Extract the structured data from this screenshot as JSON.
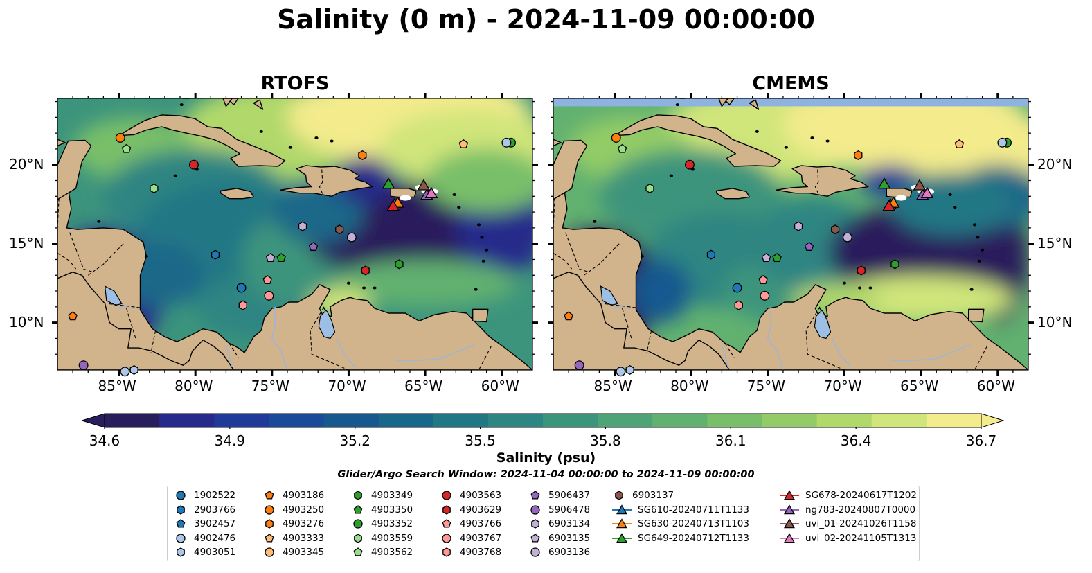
{
  "title": "Salinity (0 m) - 2024-11-09 00:00:00",
  "panels": [
    {
      "title": "RTOFS"
    },
    {
      "title": "CMEMS"
    }
  ],
  "axes": {
    "lon_ticks": [
      "85°W",
      "80°W",
      "75°W",
      "70°W",
      "65°W",
      "60°W"
    ],
    "lat_ticks": [
      "20°N",
      "15°N",
      "10°N"
    ]
  },
  "colorbar": {
    "label": "Salinity (psu)",
    "tick_labels": [
      "34.6",
      "34.9",
      "35.2",
      "35.5",
      "35.8",
      "36.1",
      "36.4",
      "36.7"
    ],
    "range": [
      34.6,
      36.7
    ],
    "colormap": [
      "#2a1d5c",
      "#262a8a",
      "#1f3a98",
      "#1b4a98",
      "#17598f",
      "#1a6889",
      "#237785",
      "#2f8582",
      "#3c947c",
      "#4ea377",
      "#62b170",
      "#79bf69",
      "#93cc66",
      "#b1d86a",
      "#d0e57a",
      "#f3eb8c"
    ]
  },
  "search_window": "Glider/Argo Search Window: 2024-11-04 00:00:00 to 2024-11-09 00:00:00",
  "legend": {
    "columns": [
      [
        {
          "label": "1902522",
          "marker": "circle",
          "color": "#1f77b4"
        },
        {
          "label": "2903766",
          "marker": "hexagon",
          "color": "#1f77b4"
        },
        {
          "label": "3902457",
          "marker": "pentagon",
          "color": "#1f77b4"
        },
        {
          "label": "4902476",
          "marker": "circle",
          "color": "#aec7e8"
        },
        {
          "label": "4903051",
          "marker": "hexagon",
          "color": "#aec7e8"
        }
      ],
      [
        {
          "label": "4903186",
          "marker": "pentagon",
          "color": "#ff7f0e"
        },
        {
          "label": "4903250",
          "marker": "circle",
          "color": "#ff7f0e"
        },
        {
          "label": "4903276",
          "marker": "hexagon",
          "color": "#ff7f0e"
        },
        {
          "label": "4903333",
          "marker": "pentagon",
          "color": "#ffbb78"
        },
        {
          "label": "4903345",
          "marker": "circle",
          "color": "#ffbb78"
        }
      ],
      [
        {
          "label": "4903349",
          "marker": "hexagon",
          "color": "#2ca02c"
        },
        {
          "label": "4903350",
          "marker": "pentagon",
          "color": "#2ca02c"
        },
        {
          "label": "4903352",
          "marker": "circle",
          "color": "#2ca02c"
        },
        {
          "label": "4903559",
          "marker": "hexagon",
          "color": "#98df8a"
        },
        {
          "label": "4903562",
          "marker": "pentagon",
          "color": "#98df8a"
        }
      ],
      [
        {
          "label": "4903563",
          "marker": "circle",
          "color": "#d62728"
        },
        {
          "label": "4903629",
          "marker": "hexagon",
          "color": "#d62728"
        },
        {
          "label": "4903766",
          "marker": "pentagon",
          "color": "#ff9896"
        },
        {
          "label": "4903767",
          "marker": "circle",
          "color": "#ff9896"
        },
        {
          "label": "4903768",
          "marker": "hexagon",
          "color": "#ff9896"
        }
      ],
      [
        {
          "label": "5906437",
          "marker": "pentagon",
          "color": "#9467bd"
        },
        {
          "label": "5906478",
          "marker": "circle",
          "color": "#9467bd"
        },
        {
          "label": "6903134",
          "marker": "hexagon",
          "color": "#c5b0d5"
        },
        {
          "label": "6903135",
          "marker": "pentagon",
          "color": "#c5b0d5"
        },
        {
          "label": "6903136",
          "marker": "circle",
          "color": "#c5b0d5"
        }
      ],
      [
        {
          "label": "6903137",
          "marker": "hexagon",
          "color": "#8c564b"
        },
        {
          "label": "SG610-20240711T1133",
          "marker": "triangle",
          "color": "#1f77b4"
        },
        {
          "label": "SG630-20240713T1103",
          "marker": "triangle",
          "color": "#ff7f0e"
        },
        {
          "label": "SG649-20240712T1133",
          "marker": "triangle",
          "color": "#2ca02c"
        }
      ],
      [
        {
          "label": "SG678-20240617T1202",
          "marker": "triangle",
          "color": "#d62728"
        },
        {
          "label": "ng783-20240807T0000",
          "marker": "triangle",
          "color": "#9467bd"
        },
        {
          "label": "uvi_01-20241026T1158",
          "marker": "triangle",
          "color": "#8c564b"
        },
        {
          "label": "uvi_02-20241105T1313",
          "marker": "triangle",
          "color": "#e377c2"
        }
      ]
    ]
  },
  "map_data": {
    "extent": {
      "lon": [
        -89,
        -58
      ],
      "lat": [
        7,
        24.2
      ]
    },
    "colors": {
      "land": "#d2b48c",
      "lake": "#9dbfe6",
      "river": "#9cb6d6",
      "nodata": "#8fb3e0"
    },
    "observations": [
      {
        "id": "1902522",
        "lon": -77.0,
        "lat": 12.2
      },
      {
        "id": "2903766",
        "lon": -78.7,
        "lat": 14.3
      },
      {
        "id": "4902476",
        "lon": -84.6,
        "lat": 6.9
      },
      {
        "id": "4903051",
        "lon": -84.0,
        "lat": 7.0
      },
      {
        "id": "4903186",
        "lon": -88.0,
        "lat": 10.4
      },
      {
        "id": "4903250",
        "lon": -84.9,
        "lat": 21.7
      },
      {
        "id": "4903276",
        "lon": -69.1,
        "lat": 20.6
      },
      {
        "id": "4903333",
        "lon": -62.5,
        "lat": 21.3
      },
      {
        "id": "4903349",
        "lon": -66.7,
        "lat": 13.7
      },
      {
        "id": "4903350",
        "lon": -74.4,
        "lat": 14.1
      },
      {
        "id": "4903352",
        "lon": -59.4,
        "lat": 21.4
      },
      {
        "id": "4903559",
        "lon": -82.7,
        "lat": 18.5
      },
      {
        "id": "4903562",
        "lon": -84.5,
        "lat": 21.0
      },
      {
        "id": "4903563",
        "lon": -80.1,
        "lat": 20.0
      },
      {
        "id": "4903629",
        "lon": -68.9,
        "lat": 13.3
      },
      {
        "id": "4903766",
        "lon": -75.3,
        "lat": 12.7
      },
      {
        "id": "4903767",
        "lon": -75.2,
        "lat": 11.7
      },
      {
        "id": "4903768",
        "lon": -76.9,
        "lat": 11.1
      },
      {
        "id": "5906437",
        "lon": -72.3,
        "lat": 14.8
      },
      {
        "id": "5906478",
        "lon": -87.3,
        "lat": 7.3
      },
      {
        "id": "6903134",
        "lon": -73.0,
        "lat": 16.1
      },
      {
        "id": "6903135",
        "lon": -75.1,
        "lat": 14.1
      },
      {
        "id": "6903136",
        "lon": -69.8,
        "lat": 15.4
      },
      {
        "id": "6903137",
        "lon": -70.6,
        "lat": 15.9
      },
      {
        "id": "SG610-20240711T1133",
        "lon": -67.0,
        "lat": 17.5
      },
      {
        "id": "SG630-20240713T1103",
        "lon": -66.8,
        "lat": 17.6
      },
      {
        "id": "SG649-20240712T1133",
        "lon": -67.4,
        "lat": 18.8
      },
      {
        "id": "SG678-20240617T1202",
        "lon": -67.1,
        "lat": 17.4
      },
      {
        "id": "ng783-20240807T0000",
        "lon": -64.9,
        "lat": 18.1
      },
      {
        "id": "uvi_01-20241026T1158",
        "lon": -65.1,
        "lat": 18.7
      },
      {
        "id": "uvi_02-20241105T1313",
        "lon": -64.6,
        "lat": 18.2
      }
    ],
    "observation_extra": [
      {
        "id": "4903352",
        "lon": -59.7,
        "lat": 21.4,
        "color": "#aec7e8"
      }
    ]
  }
}
